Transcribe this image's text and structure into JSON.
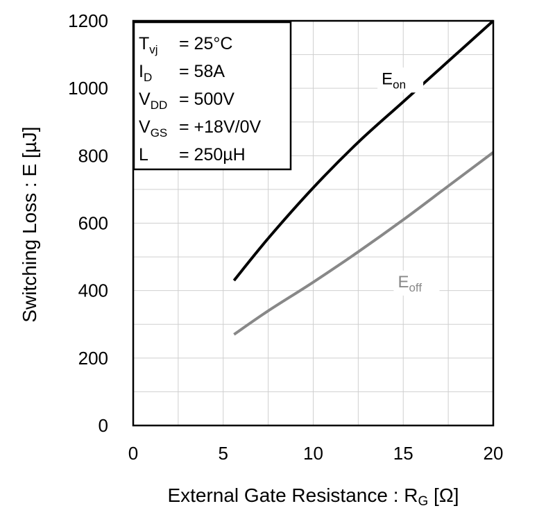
{
  "chart_data": {
    "type": "line",
    "title": "",
    "xlabel": {
      "main": "External Gate Resistance : R",
      "sub": "G",
      "unit": " [Ω]"
    },
    "ylabel": "Switching Loss : E [µJ]",
    "xlim": [
      0,
      20
    ],
    "ylim": [
      0,
      1200
    ],
    "xticks": [
      0,
      5,
      10,
      15,
      20
    ],
    "yticks": [
      0,
      200,
      400,
      600,
      800,
      1000,
      1200
    ],
    "x_minor_step": 2.5,
    "y_minor_step": 100,
    "grid": true,
    "series": [
      {
        "name": "E",
        "name_sub": "on",
        "color": "#000000",
        "label_at": [
          13.8,
          1012
        ],
        "x": [
          5.6,
          7.5,
          10,
          12.5,
          15,
          17.5,
          20
        ],
        "y": [
          430,
          555,
          705,
          840,
          960,
          1080,
          1200
        ]
      },
      {
        "name": "E",
        "name_sub": "off",
        "color": "#888888",
        "label_at": [
          14.7,
          410
        ],
        "x": [
          5.6,
          7.5,
          10,
          12.5,
          15,
          17.5,
          20
        ],
        "y": [
          270,
          340,
          425,
          515,
          610,
          710,
          810
        ]
      }
    ],
    "conditions": {
      "position": "top-left",
      "rows": [
        {
          "label": "T",
          "sub": "vj",
          "value": "= 25°C"
        },
        {
          "label": "I",
          "sub": "D",
          "value": "= 58A"
        },
        {
          "label": "V",
          "sub": "DD",
          "value": "= 500V"
        },
        {
          "label": "V",
          "sub": "GS",
          "value": "= +18V/0V"
        },
        {
          "label": "L",
          "sub": "",
          "value": "= 250µH"
        }
      ]
    }
  }
}
